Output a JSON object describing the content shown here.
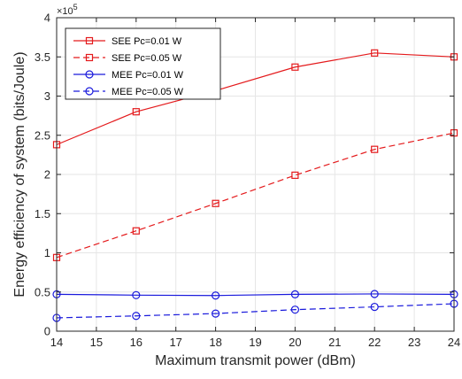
{
  "chart_data": {
    "type": "line",
    "xlabel": "Maximum transmit power (dBm)",
    "ylabel": "Energy efficiency of system (bits/Joule)",
    "y_exponent_label": "×10",
    "y_exponent_power": "5",
    "x": [
      14,
      16,
      18,
      20,
      22,
      24
    ],
    "xlim": [
      14,
      24
    ],
    "ylim": [
      0,
      400000
    ],
    "x_ticks": [
      14,
      15,
      16,
      17,
      18,
      19,
      20,
      21,
      22,
      23,
      24
    ],
    "y_ticks": [
      0,
      50000,
      100000,
      150000,
      200000,
      250000,
      300000,
      350000,
      400000
    ],
    "x_tick_labels": [
      "14",
      "15",
      "16",
      "17",
      "18",
      "19",
      "20",
      "21",
      "22",
      "23",
      "24"
    ],
    "y_tick_labels": [
      "0",
      "0.5",
      "1",
      "1.5",
      "2",
      "2.5",
      "3",
      "3.5",
      "4"
    ],
    "grid": true,
    "legend_position": "top-left",
    "series": [
      {
        "name": "SEE Pc=0.01 W",
        "color": "#e41a1c",
        "dash": "solid",
        "marker": "square",
        "values": [
          238000,
          280000,
          307000,
          337000,
          355000,
          350000
        ]
      },
      {
        "name": "SEE Pc=0.05 W",
        "color": "#e41a1c",
        "dash": "dashed",
        "marker": "square",
        "values": [
          94000,
          128000,
          163000,
          199000,
          232000,
          253000
        ]
      },
      {
        "name": "MEE Pc=0.01 W",
        "color": "#1a1adc",
        "dash": "solid",
        "marker": "circle",
        "values": [
          47000,
          46000,
          45500,
          47000,
          47500,
          47000
        ]
      },
      {
        "name": "MEE Pc=0.05 W",
        "color": "#1a1adc",
        "dash": "dashed",
        "marker": "circle",
        "values": [
          17000,
          19500,
          22500,
          27500,
          31000,
          35000
        ]
      }
    ]
  }
}
